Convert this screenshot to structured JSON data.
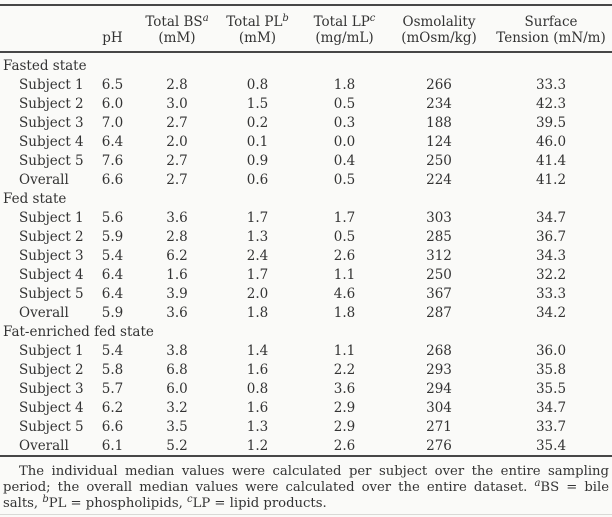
{
  "colors": {
    "background": "#fafaf8",
    "text": "#333333",
    "rule": "#474747"
  },
  "table": {
    "header": {
      "columns": [
        {
          "line1": "",
          "line2": "pH"
        },
        {
          "line1": "Total BS",
          "sup": "a",
          "line2": "(mM)"
        },
        {
          "line1": "Total PL",
          "sup": "b",
          "line2": "(mM)"
        },
        {
          "line1": "Total LP",
          "sup": "c",
          "line2": "(mg/mL)"
        },
        {
          "line1": "Osmolality",
          "line2": "(mOsm/kg)"
        },
        {
          "line1": "Surface",
          "line2": "Tension (mN/m)"
        }
      ]
    },
    "groups": [
      {
        "label": "Fasted state",
        "rows": [
          {
            "label": "Subject 1",
            "values": [
              "6.5",
              "2.8",
              "0.8",
              "1.8",
              "266",
              "33.3"
            ]
          },
          {
            "label": "Subject 2",
            "values": [
              "6.0",
              "3.0",
              "1.5",
              "0.5",
              "234",
              "42.3"
            ]
          },
          {
            "label": "Subject 3",
            "values": [
              "7.0",
              "2.7",
              "0.2",
              "0.3",
              "188",
              "39.5"
            ]
          },
          {
            "label": "Subject 4",
            "values": [
              "6.4",
              "2.0",
              "0.1",
              "0.0",
              "124",
              "46.0"
            ]
          },
          {
            "label": "Subject 5",
            "values": [
              "7.6",
              "2.7",
              "0.9",
              "0.4",
              "250",
              "41.4"
            ]
          },
          {
            "label": "Overall",
            "values": [
              "6.6",
              "2.7",
              "0.6",
              "0.5",
              "224",
              "41.2"
            ]
          }
        ]
      },
      {
        "label": "Fed state",
        "rows": [
          {
            "label": "Subject 1",
            "values": [
              "5.6",
              "3.6",
              "1.7",
              "1.7",
              "303",
              "34.7"
            ]
          },
          {
            "label": "Subject 2",
            "values": [
              "5.9",
              "2.8",
              "1.3",
              "0.5",
              "285",
              "36.7"
            ]
          },
          {
            "label": "Subject 3",
            "values": [
              "5.4",
              "6.2",
              "2.4",
              "2.6",
              "312",
              "34.3"
            ]
          },
          {
            "label": "Subject 4",
            "values": [
              "6.4",
              "1.6",
              "1.7",
              "1.1",
              "250",
              "32.2"
            ]
          },
          {
            "label": "Subject 5",
            "values": [
              "6.4",
              "3.9",
              "2.0",
              "4.6",
              "367",
              "33.3"
            ]
          },
          {
            "label": "Overall",
            "values": [
              "5.9",
              "3.6",
              "1.8",
              "1.8",
              "287",
              "34.2"
            ]
          }
        ]
      },
      {
        "label": "Fat-enriched fed state",
        "rows": [
          {
            "label": "Subject 1",
            "values": [
              "5.4",
              "3.8",
              "1.4",
              "1.1",
              "268",
              "36.0"
            ]
          },
          {
            "label": "Subject 2",
            "values": [
              "5.8",
              "6.8",
              "1.6",
              "2.2",
              "293",
              "35.8"
            ]
          },
          {
            "label": "Subject 3",
            "values": [
              "5.7",
              "6.0",
              "0.8",
              "3.6",
              "294",
              "35.5"
            ]
          },
          {
            "label": "Subject 4",
            "values": [
              "6.2",
              "3.2",
              "1.6",
              "2.9",
              "304",
              "34.7"
            ]
          },
          {
            "label": "Subject 5",
            "values": [
              "6.6",
              "3.5",
              "1.3",
              "2.9",
              "271",
              "33.7"
            ]
          },
          {
            "label": "Overall",
            "values": [
              "6.1",
              "5.2",
              "1.2",
              "2.6",
              "276",
              "35.4"
            ]
          }
        ]
      }
    ]
  },
  "footnote": {
    "main": "The individual median values were calculated per subject over the entire sampling period; the overall median values were calculated over the entire dataset. ",
    "sup_a": "a",
    "bs": "BS = bile salts, ",
    "sup_b": "b",
    "pl": "PL = phospholipids, ",
    "sup_c": "c",
    "lp": "LP = lipid products."
  }
}
